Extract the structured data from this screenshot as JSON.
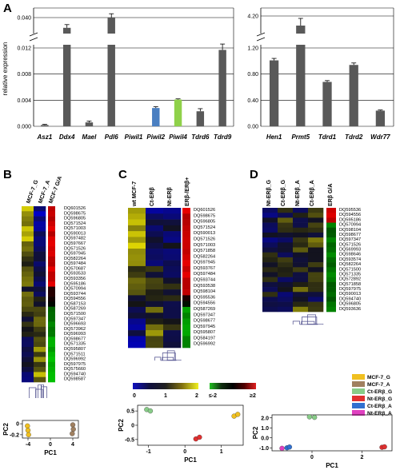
{
  "panel_labels": {
    "a": "A",
    "b": "B",
    "c": "C",
    "d": "D"
  },
  "chart_data": [
    {
      "panel": "A",
      "type": "bar",
      "ylabel": "relative expression",
      "sections": [
        {
          "categories": [
            "Asz1",
            "Ddx4",
            "Mael",
            "Pdl6",
            "Piwil1",
            "Piwil2",
            "Piwil4",
            "Tdrd6",
            "Tdrd9"
          ],
          "values": [
            0.0002,
            0.032,
            0.0006,
            0.04,
            0.0,
            0.0028,
            0.0041,
            0.0023,
            0.0117
          ],
          "errors": [
            0.0001,
            0.0025,
            0.0002,
            0.003,
            0.0,
            0.0002,
            0.0001,
            0.0004,
            0.0009
          ],
          "colors": [
            "#595959",
            "#595959",
            "#595959",
            "#595959",
            "#595959",
            "#4a7fc1",
            "#8fd14a",
            "#595959",
            "#595959"
          ],
          "lower_range": [
            0,
            0.012
          ],
          "upper_range": [
            0.03,
            0.045
          ],
          "lower_ticks": [
            "0.000",
            "0.004",
            "0.008",
            "0.012"
          ],
          "upper_ticks": [
            "0.040"
          ]
        },
        {
          "categories": [
            "Hen1",
            "Prmt5",
            "Tdrd1",
            "Tdrd2",
            "Wdr77"
          ],
          "values": [
            1.01,
            4.0,
            0.68,
            0.94,
            0.24
          ],
          "errors": [
            0.03,
            0.15,
            0.02,
            0.03,
            0.01
          ],
          "colors": [
            "#595959",
            "#595959",
            "#595959",
            "#595959",
            "#595959"
          ],
          "lower_range": [
            0,
            1.2
          ],
          "upper_range": [
            3.9,
            4.3
          ],
          "lower_ticks": [
            "0.00",
            "0.40",
            "0.80",
            "1.20"
          ],
          "upper_ticks": [
            "4.20"
          ]
        }
      ]
    },
    {
      "panel": "B",
      "type": "heatmap",
      "columns": [
        "MCF-7_G",
        "MCF-7_A"
      ],
      "annotation_column": "MCF-7 G/A",
      "rows": [
        "DQ601526",
        "DQ598675",
        "DQ596805",
        "DQ571524",
        "DQ571003",
        "DQ590013",
        "DQ597482",
        "DQ597667",
        "DQ571526",
        "DQ597945",
        "DQ582264",
        "DQ597484",
        "DQ570687",
        "DQ593533",
        "DQ593356",
        "DQ595186",
        "DQ570994",
        "DQ593744",
        "DQ594556",
        "DQ587153",
        "DQ587269",
        "DQ571500",
        "DQ597347",
        "DQ596693",
        "DQ573962",
        "DQ596993",
        "DQ598677",
        "DQ571335",
        "DQ595807",
        "DQ571511",
        "DQ596992",
        "DQ597975",
        "DQ575660",
        "DQ594740",
        "DQ598587"
      ],
      "scatter": {
        "xlabel": "PC1",
        "ylabel": "PC2",
        "xticks": [
          "-4",
          "0",
          "4"
        ],
        "yticks": [
          "0",
          "-0.2"
        ],
        "points": [
          {
            "x": -4.1,
            "y": -0.04,
            "group": "MCF-7_G"
          },
          {
            "x": -4.0,
            "y": -0.12,
            "group": "MCF-7_G"
          },
          {
            "x": -3.9,
            "y": -0.2,
            "group": "MCF-7_G"
          },
          {
            "x": 4.0,
            "y": -0.02,
            "group": "MCF-7_A"
          },
          {
            "x": 4.1,
            "y": -0.1,
            "group": "MCF-7_A"
          },
          {
            "x": 3.9,
            "y": -0.18,
            "group": "MCF-7_A"
          }
        ]
      }
    },
    {
      "panel": "C",
      "type": "heatmap",
      "columns": [
        "wt MCF-7",
        "Ct-ERβ",
        "Nt-ERβ",
        "ERβ-/ERβ+"
      ],
      "rows": [
        "DQ601526",
        "DQ598675",
        "DQ596805",
        "DQ571524",
        "DQ590013",
        "DQ571526",
        "DQ571003",
        "DQ571858",
        "DQ582264",
        "DQ597945",
        "DQ593767",
        "DQ597484",
        "DQ593744",
        "DQ593538",
        "DQ598104",
        "DQ595536",
        "DQ594556",
        "DQ587269",
        "DQ597347",
        "DQ598677",
        "DQ597945",
        "DQ595807",
        "DQ584197",
        "DQ596992"
      ],
      "color_scale_1": {
        "ticks": [
          "0",
          "1",
          "2"
        ]
      },
      "color_scale_2": {
        "ticks": [
          "≤-2",
          "≥2"
        ]
      },
      "scatter": {
        "xlabel": "PC1",
        "ylabel": "PC2",
        "xticks": [
          "-1",
          "0",
          "1"
        ],
        "yticks": [
          "0.5",
          "0",
          "-0.5"
        ],
        "points": [
          {
            "x": -1.05,
            "y": 0.55,
            "group": "wt MCF-7"
          },
          {
            "x": -0.95,
            "y": 0.5,
            "group": "wt MCF-7"
          },
          {
            "x": 1.35,
            "y": 0.32,
            "group": "Ct-ERβ"
          },
          {
            "x": 1.45,
            "y": 0.38,
            "group": "Ct-ERβ"
          },
          {
            "x": 0.3,
            "y": -0.48,
            "group": "Nt-ERβ"
          },
          {
            "x": 0.4,
            "y": -0.42,
            "group": "Nt-ERβ"
          }
        ]
      }
    },
    {
      "panel": "D",
      "type": "heatmap",
      "columns": [
        "Nt-ERβ_G",
        "Ct-ERβ_G",
        "Nt-ERβ_A",
        "Ct-ERβ_A"
      ],
      "annotation_column": "ERβ G/A",
      "rows": [
        "DQ595536",
        "DQ594556",
        "DQ595186",
        "DQ570994",
        "DQ598104",
        "DQ598677",
        "DQ597347",
        "DQ571526",
        "DQ569993",
        "DQ598646",
        "DQ593574",
        "DQ582264",
        "DQ571500",
        "DQ571335",
        "DQ572892",
        "DQ571858",
        "DQ597975",
        "DQ590013",
        "DQ594740",
        "DQ596805",
        "DQ593636"
      ],
      "legend": [
        "MCF-7_G",
        "MCF-7_A",
        "Ct-ERβ_G",
        "Nt-ERβ_G",
        "Ct-ERβ_A",
        "Nt-ERβ_A"
      ],
      "legend_colors": [
        "#f0c020",
        "#a08060",
        "#88cc88",
        "#e03030",
        "#3070d0",
        "#e040c0"
      ],
      "scatter": {
        "xlabel": "PC1",
        "ylabel": "PC2",
        "xticks": [
          "0",
          "2"
        ],
        "yticks": [
          "2.0",
          "1.0",
          "0.0",
          "-1.0"
        ],
        "points": [
          {
            "x": -0.1,
            "y": 2.1,
            "group": "Ct-ERβ_G"
          },
          {
            "x": 0.1,
            "y": 2.05,
            "group": "Ct-ERβ_G"
          },
          {
            "x": 2.8,
            "y": -0.95,
            "group": "Nt-ERβ_G"
          },
          {
            "x": 2.9,
            "y": -0.9,
            "group": "Nt-ERβ_G"
          },
          {
            "x": -1.0,
            "y": -1.0,
            "group": "Ct-ERβ_A"
          },
          {
            "x": -0.9,
            "y": -0.92,
            "group": "Ct-ERβ_A"
          },
          {
            "x": -1.2,
            "y": -1.05,
            "group": "Nt-ERβ_A"
          }
        ]
      }
    }
  ]
}
